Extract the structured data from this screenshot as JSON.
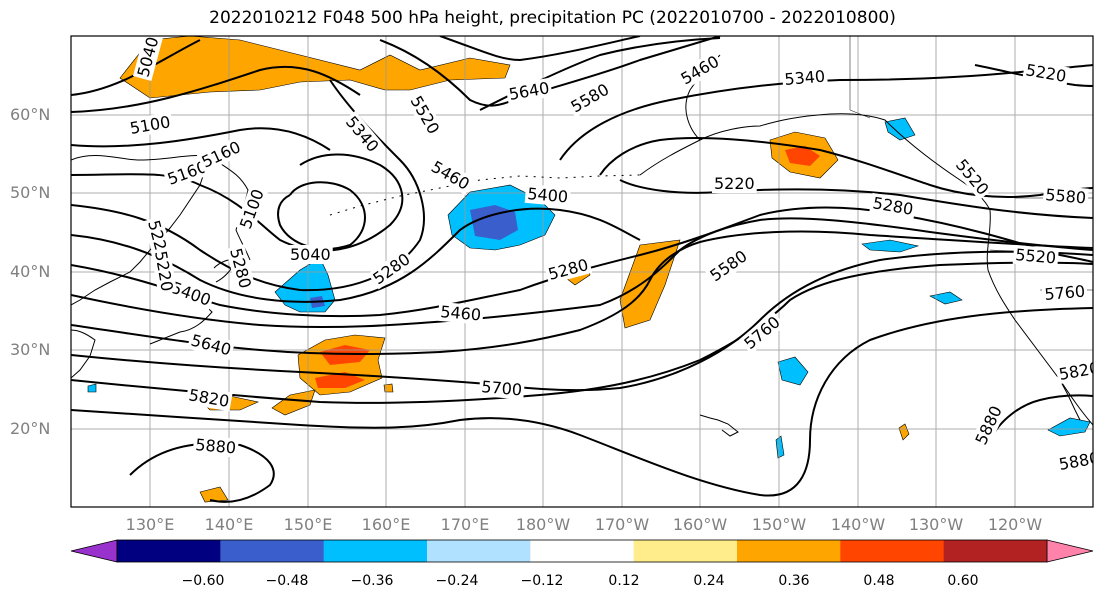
{
  "title": "2022010212 F048 500 hPa height, precipitation PC (2022010700 - 2022010800)",
  "lat_labels": [
    "60°N",
    "50°N",
    "40°N",
    "30°N",
    "20°N"
  ],
  "lon_labels": [
    "130°E",
    "140°E",
    "150°E",
    "160°E",
    "170°E",
    "180°W",
    "170°W",
    "160°W",
    "150°W",
    "140°W",
    "130°W",
    "120°W"
  ],
  "contour_labels": [
    "5040",
    "5100",
    "5160",
    "5220",
    "5280",
    "5340",
    "5400",
    "5460",
    "5520",
    "5580",
    "5640",
    "5700",
    "5760",
    "5820",
    "5880",
    "5100",
    "5040",
    "5220",
    "5160",
    "5460",
    "5280",
    "5520",
    "5640",
    "5580",
    "5340",
    "5220",
    "5460",
    "5400",
    "5280",
    "5580",
    "5220",
    "5280",
    "5520",
    "5760",
    "5880",
    "5820",
    "5880"
  ],
  "colorbar": {
    "ticks": [
      "−0.60",
      "−0.48",
      "−0.36",
      "−0.24",
      "−0.12",
      "0.12",
      "0.24",
      "0.36",
      "0.48",
      "0.60"
    ],
    "colors": [
      "#9932cc",
      "#000080",
      "#3a5fcd",
      "#00bfff",
      "#b0e2ff",
      "#ffffff",
      "#ffec8b",
      "#ffa500",
      "#ff4500",
      "#b22222",
      "#ff82ab"
    ]
  }
}
